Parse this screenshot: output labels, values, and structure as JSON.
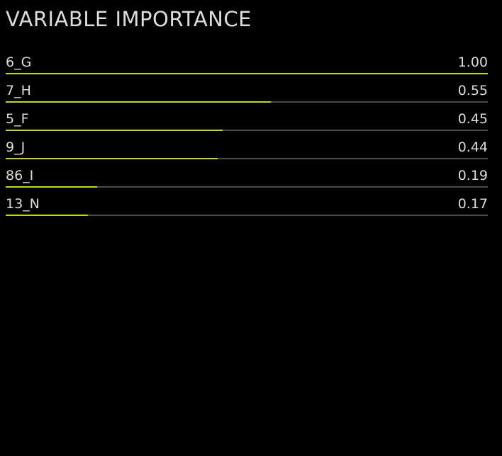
{
  "title": "VARIABLE IMPORTANCE",
  "colors": {
    "background": "#000000",
    "bar_fill": "#c7d41a",
    "bar_track": "#4a4a4a",
    "text": "#dcdcdc"
  },
  "chart_data": {
    "type": "bar",
    "orientation": "horizontal",
    "title": "VARIABLE IMPORTANCE",
    "categories": [
      "6_G",
      "7_H",
      "5_F",
      "9_J",
      "86_I",
      "13_N"
    ],
    "values": [
      1.0,
      0.55,
      0.45,
      0.44,
      0.19,
      0.17
    ],
    "value_labels": [
      "1.00",
      "0.55",
      "0.45",
      "0.44",
      "0.19",
      "0.17"
    ],
    "xlim": [
      0,
      1
    ],
    "grid": false,
    "legend": "none"
  }
}
